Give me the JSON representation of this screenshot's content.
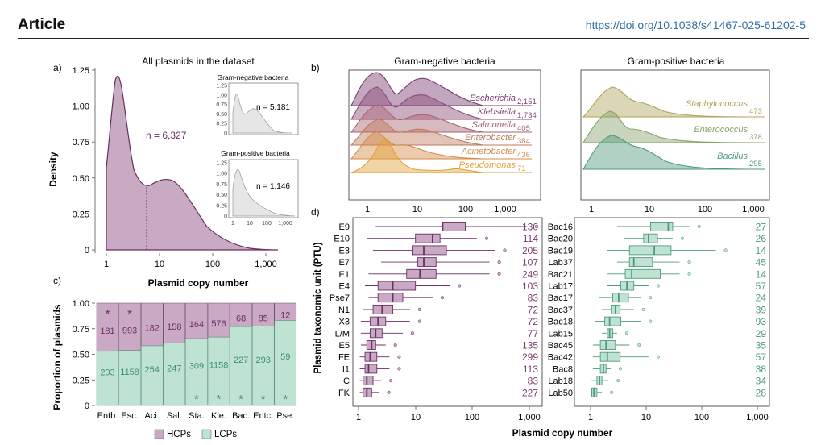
{
  "header": {
    "article": "Article",
    "doi": "https://doi.org/10.1038/s41467-025-61202-5"
  },
  "colors": {
    "hcp": "#9a6b93",
    "lcp": "#a9dbc7",
    "gram_neg": "#7a3b6e",
    "gram_pos": "#4f9a7c"
  },
  "figure": {
    "panel_a": {
      "label": "a)",
      "title": "All plasmids in the dataset",
      "n": "n = 6,327",
      "xlabel": "Plasmid copy number",
      "ylabel": "Density",
      "y_ticks": [
        "0",
        "0.25",
        "0.50",
        "0.75",
        "1.00",
        "1.25"
      ],
      "x_ticks": [
        "1",
        "10",
        "100",
        "1,000"
      ],
      "inset_neg": {
        "title": "Gram-negative bacteria",
        "n": "n = 5,181"
      },
      "inset_pos": {
        "title": "Gram-positive bacteria",
        "n": "n = 1,146"
      },
      "inset_y_ticks": [
        "0",
        "0.25",
        "0.50",
        "0.75",
        "1.00",
        "1.25"
      ],
      "inset_x_ticks": [
        "1",
        "10",
        "100",
        "1,000"
      ]
    },
    "panel_b": {
      "label": "b)",
      "neg_title": "Gram-negative bacteria",
      "pos_title": "Gram-positive bacteria",
      "x_ticks": [
        "1",
        "10",
        "100",
        "1,000"
      ],
      "neg": [
        {
          "name": "Escherichia",
          "n": "2,151",
          "color": "#7a3b6e"
        },
        {
          "name": "Klebsiella",
          "n": "1,734",
          "color": "#8c4a78"
        },
        {
          "name": "Salmonella",
          "n": "405",
          "color": "#a66473"
        },
        {
          "name": "Enterobacter",
          "n": "384",
          "color": "#bf7a5c"
        },
        {
          "name": "Acinetobacter",
          "n": "436",
          "color": "#d38b47"
        },
        {
          "name": "Pseudomonas",
          "n": "71",
          "color": "#e2a23a"
        }
      ],
      "pos": [
        {
          "name": "Staphylococcus",
          "n": "473",
          "color": "#b0a35a"
        },
        {
          "name": "Enterococcus",
          "n": "378",
          "color": "#87a26a"
        },
        {
          "name": "Bacillus",
          "n": "295",
          "color": "#4f9a7c"
        }
      ]
    },
    "panel_c": {
      "label": "c)",
      "ylabel": "Proportion of plasmids",
      "y_ticks": [
        "0",
        "0.25",
        "0.50",
        "0.75",
        "1.00"
      ],
      "legend": {
        "hcp": "HCPs",
        "lcp": "LCPs"
      },
      "bars": [
        {
          "genus": "Entb.",
          "hcp": "181",
          "lcp": "203",
          "hcp_frac": 0.471,
          "star_hcp": "*",
          "star_lcp": ""
        },
        {
          "genus": "Esc.",
          "hcp": "993",
          "lcp": "1158",
          "hcp_frac": 0.462,
          "star_hcp": "*",
          "star_lcp": ""
        },
        {
          "genus": "Aci.",
          "hcp": "182",
          "lcp": "254",
          "hcp_frac": 0.417,
          "star_hcp": "",
          "star_lcp": ""
        },
        {
          "genus": "Sal.",
          "hcp": "158",
          "lcp": "247",
          "hcp_frac": 0.39,
          "star_hcp": "",
          "star_lcp": ""
        },
        {
          "genus": "Sta.",
          "hcp": "164",
          "lcp": "309",
          "hcp_frac": 0.347,
          "star_hcp": "",
          "star_lcp": "*"
        },
        {
          "genus": "Kle.",
          "hcp": "576",
          "lcp": "1158",
          "hcp_frac": 0.332,
          "star_hcp": "",
          "star_lcp": "*"
        },
        {
          "genus": "Bac.",
          "hcp": "68",
          "lcp": "227",
          "hcp_frac": 0.23,
          "star_hcp": "",
          "star_lcp": "*"
        },
        {
          "genus": "Entc.",
          "hcp": "85",
          "lcp": "293",
          "hcp_frac": 0.225,
          "star_hcp": "",
          "star_lcp": "*"
        },
        {
          "genus": "Pse.",
          "hcp": "12",
          "lcp": "59",
          "hcp_frac": 0.169,
          "star_hcp": "",
          "star_lcp": "*"
        }
      ]
    },
    "panel_d": {
      "label": "d)",
      "ylabel": "Plasmid taxonomic unit (PTU)",
      "xlabel": "Plasmid copy number",
      "x_ticks": [
        "1",
        "10",
        "100",
        "1,000"
      ],
      "neg": [
        {
          "ptu": "E9",
          "n": "130",
          "q1": 30,
          "med": 30,
          "q3": 75,
          "lo": 2,
          "hi": 900
        },
        {
          "ptu": "E10",
          "n": "114",
          "q1": 10,
          "med": 20,
          "q3": 27,
          "lo": 1.4,
          "hi": 120
        },
        {
          "ptu": "E3",
          "n": "205",
          "q1": 9,
          "med": 14,
          "q3": 35,
          "lo": 1.8,
          "hi": 250
        },
        {
          "ptu": "E7",
          "n": "107",
          "q1": 11,
          "med": 14,
          "q3": 23,
          "lo": 2.5,
          "hi": 200
        },
        {
          "ptu": "E1",
          "n": "249",
          "q1": 7,
          "med": 12,
          "q3": 23,
          "lo": 1.5,
          "hi": 200
        },
        {
          "ptu": "E4",
          "n": "103",
          "q1": 2.2,
          "med": 4,
          "q3": 10,
          "lo": 1.3,
          "hi": 40
        },
        {
          "ptu": "Pse7",
          "n": "83",
          "q1": 2.2,
          "med": 4,
          "q3": 6,
          "lo": 1.5,
          "hi": 20
        },
        {
          "ptu": "N1",
          "n": "72",
          "q1": 1.8,
          "med": 2.6,
          "q3": 4,
          "lo": 1.2,
          "hi": 8
        },
        {
          "ptu": "X3",
          "n": "72",
          "q1": 1.6,
          "med": 2.2,
          "q3": 3,
          "lo": 1.1,
          "hi": 8
        },
        {
          "ptu": "L/M",
          "n": "77",
          "q1": 1.6,
          "med": 2,
          "q3": 2.6,
          "lo": 1.1,
          "hi": 6
        },
        {
          "ptu": "E5",
          "n": "135",
          "q1": 1.4,
          "med": 1.7,
          "q3": 2,
          "lo": 1.1,
          "hi": 3
        },
        {
          "ptu": "FE",
          "n": "299",
          "q1": 1.3,
          "med": 1.6,
          "q3": 2.1,
          "lo": 1.05,
          "hi": 3.5
        },
        {
          "ptu": "I1",
          "n": "113",
          "q1": 1.3,
          "med": 1.5,
          "q3": 2.1,
          "lo": 1.05,
          "hi": 3.5
        },
        {
          "ptu": "C",
          "n": "83",
          "q1": 1.2,
          "med": 1.4,
          "q3": 1.8,
          "lo": 1.05,
          "hi": 2.5
        },
        {
          "ptu": "FK",
          "n": "227",
          "q1": 1.2,
          "med": 1.4,
          "q3": 1.7,
          "lo": 1.05,
          "hi": 2.3
        }
      ],
      "pos": [
        {
          "ptu": "Bac16",
          "n": "27",
          "q1": 12,
          "med": 25,
          "q3": 30,
          "lo": 3,
          "hi": 60
        },
        {
          "ptu": "Bac20",
          "n": "26",
          "q1": 9,
          "med": 11,
          "q3": 16,
          "lo": 4,
          "hi": 30
        },
        {
          "ptu": "Bac19",
          "n": "14",
          "q1": 5,
          "med": 14,
          "q3": 28,
          "lo": 2,
          "hi": 180
        },
        {
          "ptu": "Lab37",
          "n": "45",
          "q1": 5,
          "med": 6,
          "q3": 13,
          "lo": 3,
          "hi": 40
        },
        {
          "ptu": "Bac21",
          "n": "14",
          "q1": 4.2,
          "med": 5.5,
          "q3": 18,
          "lo": 2,
          "hi": 40
        },
        {
          "ptu": "Lab17",
          "n": "57",
          "q1": 3.5,
          "med": 4.5,
          "q3": 6,
          "lo": 2,
          "hi": 11
        },
        {
          "ptu": "Bac17",
          "n": "24",
          "q1": 2.5,
          "med": 3.2,
          "q3": 4.8,
          "lo": 1.4,
          "hi": 8
        },
        {
          "ptu": "Bac37",
          "n": "39",
          "q1": 2.4,
          "med": 2.8,
          "q3": 3.4,
          "lo": 1.6,
          "hi": 6
        },
        {
          "ptu": "Bac18",
          "n": "93",
          "q1": 1.8,
          "med": 2.2,
          "q3": 3.5,
          "lo": 1.2,
          "hi": 8
        },
        {
          "ptu": "Lab15",
          "n": "29",
          "q1": 2,
          "med": 2.2,
          "q3": 2.5,
          "lo": 1.6,
          "hi": 3
        },
        {
          "ptu": "Bac45",
          "n": "35",
          "q1": 1.5,
          "med": 1.9,
          "q3": 2.8,
          "lo": 1.1,
          "hi": 5
        },
        {
          "ptu": "Bac42",
          "n": "57",
          "q1": 1.5,
          "med": 2,
          "q3": 3.4,
          "lo": 1.1,
          "hi": 11
        },
        {
          "ptu": "Bac8",
          "n": "38",
          "q1": 1.5,
          "med": 1.7,
          "q3": 1.9,
          "lo": 1.1,
          "hi": 2.3
        },
        {
          "ptu": "Lab18",
          "n": "34",
          "q1": 1.3,
          "med": 1.45,
          "q3": 1.6,
          "lo": 1.05,
          "hi": 2.1
        },
        {
          "ptu": "Lab50",
          "n": "28",
          "q1": 1.05,
          "med": 1.15,
          "q3": 1.3,
          "lo": 1,
          "hi": 1.6
        }
      ]
    }
  }
}
